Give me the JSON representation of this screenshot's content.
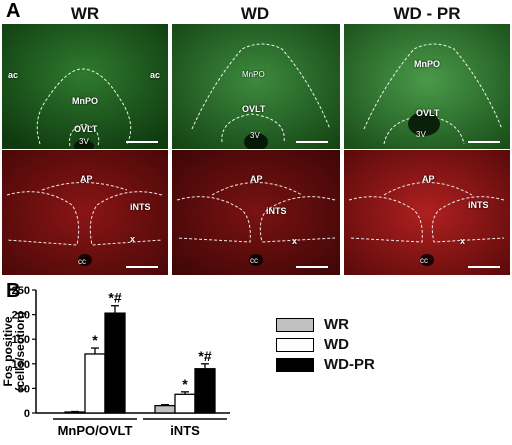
{
  "panel_a": {
    "letter": "A",
    "columns": [
      "WR",
      "WD",
      "WD - PR"
    ],
    "top_row_labels": {
      "col1": {
        "ac_left": "ac",
        "ac_right": "ac",
        "mnpo": "MnPO",
        "ovlt": "OVLT",
        "v3": "3V"
      },
      "col2": {
        "mnpo": "MnPO",
        "ovlt": "OVLT",
        "v3": "3V"
      },
      "col3": {
        "mnpo": "MnPO",
        "ovlt": "OVLT",
        "v3": "3V"
      }
    },
    "bottom_row_labels": {
      "ap": "AP",
      "ints": "iNTS",
      "x": "x",
      "cc": "cc"
    },
    "colors": {
      "green_stain": "#1f5a1f",
      "red_stain": "#7a1010"
    }
  },
  "panel_b": {
    "letter": "B",
    "chart_data": {
      "type": "bar",
      "ylabel": "Fos positive (cells/section)",
      "ylim": [
        0,
        250
      ],
      "yticks": [
        0,
        50,
        100,
        150,
        200,
        250
      ],
      "groups": [
        "MnPO/OVLT",
        "iNTS"
      ],
      "series": [
        {
          "name": "WR",
          "color": "#c0c0c0",
          "values": [
            2,
            15
          ],
          "errors": [
            1,
            2
          ],
          "marks": [
            "",
            ""
          ]
        },
        {
          "name": "WD",
          "color": "#ffffff",
          "values": [
            120,
            38
          ],
          "errors": [
            12,
            5
          ],
          "marks": [
            "*",
            "*"
          ]
        },
        {
          "name": "WD-PR",
          "color": "#000000",
          "values": [
            203,
            90
          ],
          "errors": [
            15,
            10
          ],
          "marks": [
            "*#",
            "*#"
          ]
        }
      ]
    },
    "legend": [
      "WR",
      "WD",
      "WD-PR"
    ]
  }
}
